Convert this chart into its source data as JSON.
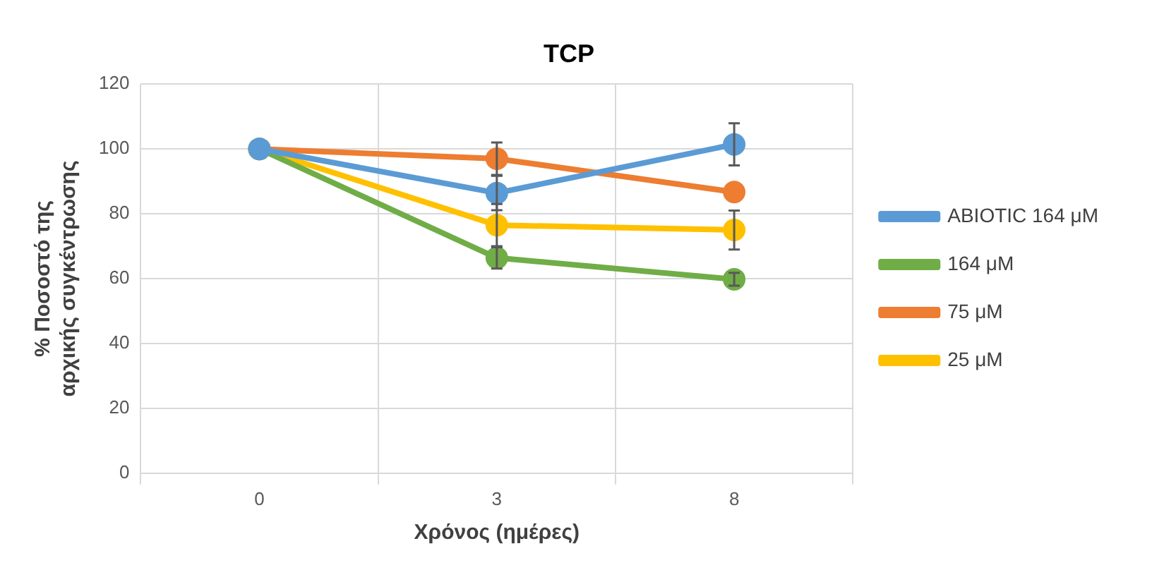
{
  "chart_data": {
    "type": "line",
    "title": "TCP",
    "xlabel": "Χρόνος (ημέρες)",
    "ylabel": "% Ποσοστό της αρχικής συγκέντρωσης",
    "categories": [
      "0",
      "3",
      "8"
    ],
    "series": [
      {
        "name": "ABIOTIC 164 μM",
        "color": "#5b9bd5",
        "values": [
          100,
          86.4,
          101.4
        ],
        "errors": [
          null,
          5.3,
          6.5
        ]
      },
      {
        "name": "164 μM",
        "color": "#70ad47",
        "values": [
          100,
          66.4,
          59.8
        ],
        "errors": [
          null,
          3.3,
          2
        ]
      },
      {
        "name": "75 μM",
        "color": "#ed7d31",
        "values": [
          100,
          97,
          86.7
        ],
        "errors": [
          null,
          5,
          null
        ]
      },
      {
        "name": "25 μM",
        "color": "#ffc000",
        "values": [
          100,
          76.5,
          75
        ],
        "errors": [
          null,
          6.5,
          6
        ]
      }
    ],
    "ylim": [
      0,
      120
    ],
    "yticks": [
      0,
      20,
      40,
      60,
      80,
      100,
      120
    ],
    "grid": true,
    "legend": "right",
    "marker": "circle"
  }
}
